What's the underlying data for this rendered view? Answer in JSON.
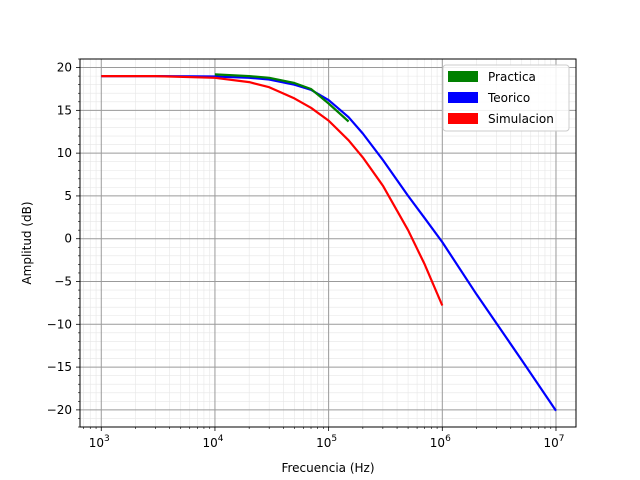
{
  "chart_data": {
    "type": "line",
    "xscale": "log",
    "xlabel": "Frecuencia (Hz)",
    "ylabel": "Amplitud (dB)",
    "xlim": [
      650,
      15000000
    ],
    "ylim": [
      -22,
      21
    ],
    "x_ticks": [
      1000,
      10000,
      100000,
      1000000,
      10000000
    ],
    "x_tick_labels": [
      {
        "base": "10",
        "exp": "3"
      },
      {
        "base": "10",
        "exp": "4"
      },
      {
        "base": "10",
        "exp": "5"
      },
      {
        "base": "10",
        "exp": "6"
      },
      {
        "base": "10",
        "exp": "7"
      }
    ],
    "y_ticks": [
      20,
      15,
      10,
      5,
      0,
      -5,
      -10,
      -15,
      -20
    ],
    "y_tick_labels": [
      "20",
      "15",
      "10",
      "5",
      "0",
      "−5",
      "−10",
      "−15",
      "−20"
    ],
    "grid": {
      "major": true,
      "minor": true
    },
    "legend_position": "top-right",
    "series": [
      {
        "name": "Practica",
        "color": "#008000",
        "x": [
          10000,
          20000,
          30000,
          50000,
          70000,
          100000,
          150000
        ],
        "y": [
          19.2,
          19.0,
          18.8,
          18.2,
          17.5,
          15.8,
          13.7
        ]
      },
      {
        "name": "Teorico",
        "color": "#0000ff",
        "x": [
          1000,
          3000,
          10000,
          20000,
          30000,
          50000,
          70000,
          100000,
          150000,
          200000,
          300000,
          500000,
          700000,
          1000000,
          2000000,
          5000000,
          10000000
        ],
        "y": [
          19.0,
          19.0,
          18.95,
          18.8,
          18.6,
          18.0,
          17.4,
          16.2,
          14.2,
          12.3,
          9.2,
          5.0,
          2.4,
          -0.4,
          -6.5,
          -14.2,
          -20.1
        ]
      },
      {
        "name": "Simulacion",
        "color": "#ff0000",
        "x": [
          1000,
          3000,
          10000,
          20000,
          30000,
          50000,
          70000,
          100000,
          150000,
          200000,
          300000,
          500000,
          700000,
          1000000
        ],
        "y": [
          19.0,
          19.0,
          18.8,
          18.3,
          17.7,
          16.4,
          15.3,
          13.8,
          11.5,
          9.5,
          6.2,
          1.0,
          -3.0,
          -7.8
        ]
      }
    ]
  }
}
